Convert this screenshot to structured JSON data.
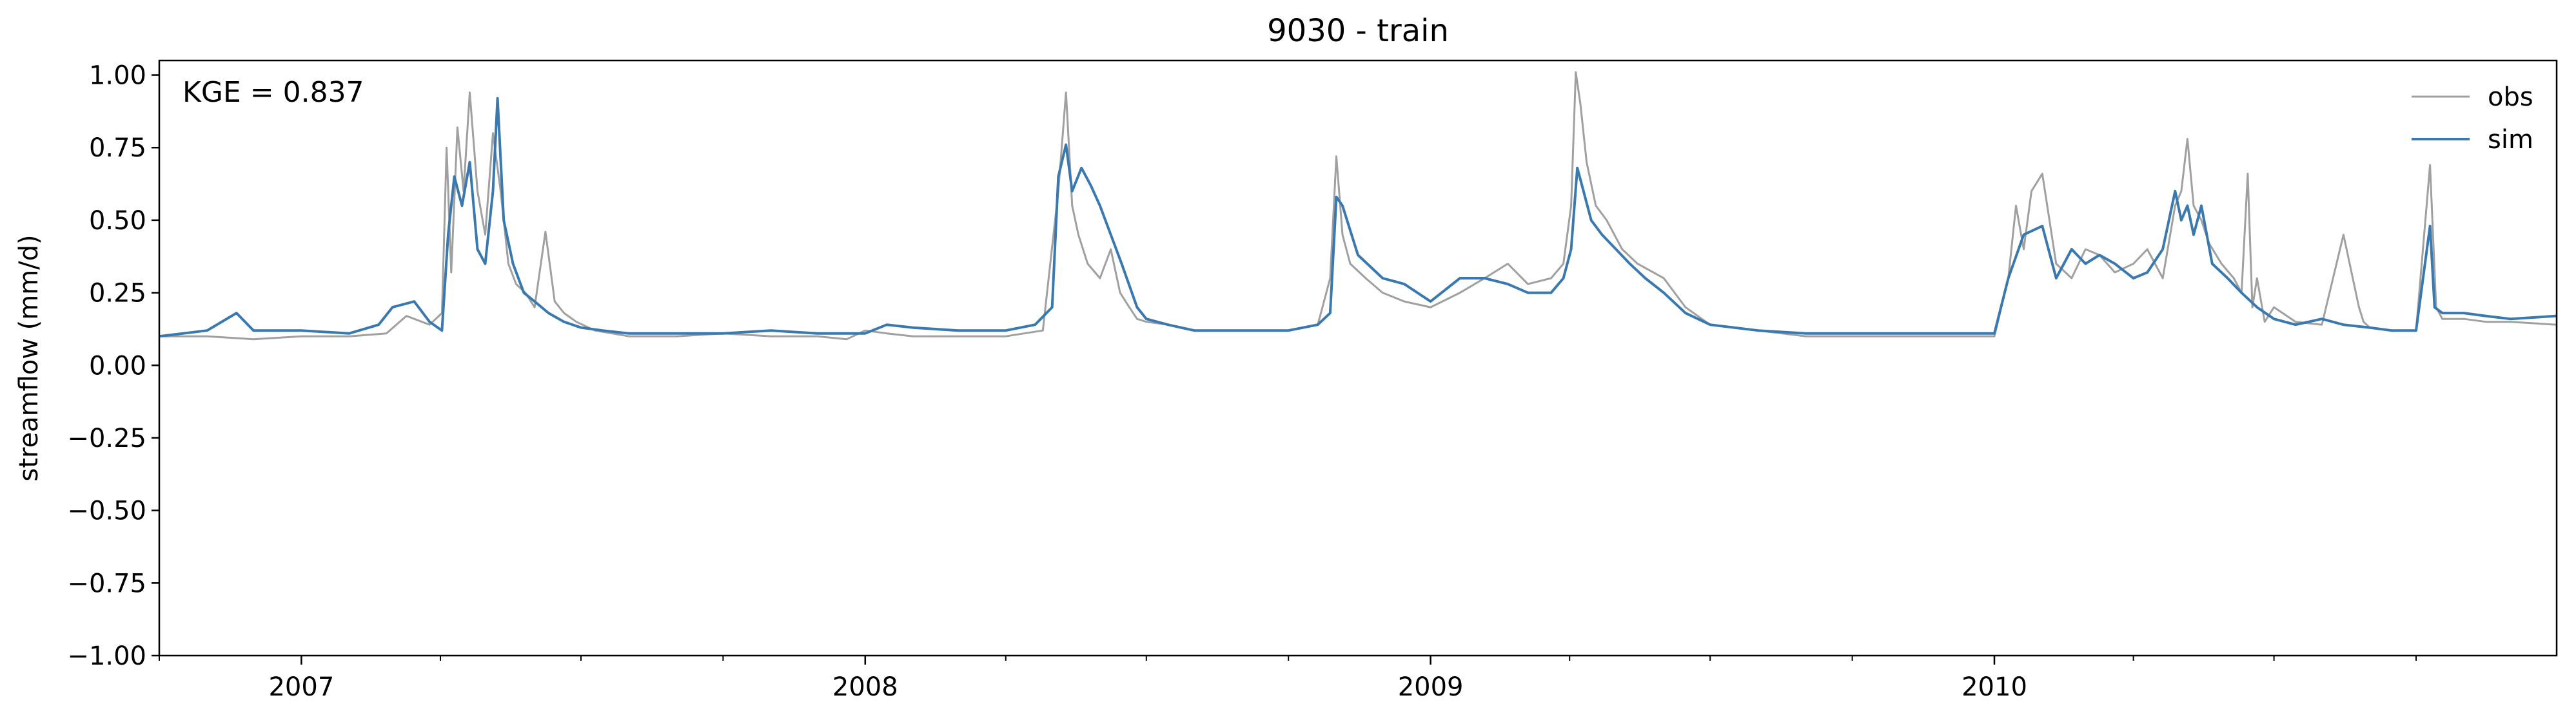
{
  "chart_data": {
    "type": "line",
    "title": "9030 - train",
    "xlabel": "",
    "ylabel": "streamflow (mm/d)",
    "annotation": "KGE = 0.837",
    "xlim": [
      "2006-10-01",
      "2010-12-31"
    ],
    "ylim": [
      -1.0,
      1.05
    ],
    "y_ticks": [
      -1.0,
      -0.75,
      -0.5,
      -0.25,
      0.0,
      0.25,
      0.5,
      0.75,
      1.0
    ],
    "y_tick_labels": [
      "−1.00",
      "−0.75",
      "−0.50",
      "−0.25",
      "0.00",
      "0.25",
      "0.50",
      "0.75",
      "1.00"
    ],
    "x_ticks": [
      "2007-01-01",
      "2008-01-01",
      "2009-01-01",
      "2010-01-01"
    ],
    "x_tick_labels": [
      "2007",
      "2008",
      "2009",
      "2010"
    ],
    "x_minor_ticks": [
      "2006-10-01",
      "2007-04-01",
      "2007-07-01",
      "2007-10-01",
      "2008-04-01",
      "2008-07-01",
      "2008-10-01",
      "2009-04-01",
      "2009-07-01",
      "2009-10-01",
      "2010-04-01",
      "2010-07-01",
      "2010-10-01"
    ],
    "grid": false,
    "legend_position": "top-right",
    "series": [
      {
        "name": "obs",
        "color": "#a0a0a0",
        "x": [
          "2006-10-01",
          "2006-11-01",
          "2006-12-01",
          "2007-01-01",
          "2007-02-01",
          "2007-02-25",
          "2007-03-10",
          "2007-03-25",
          "2007-04-02",
          "2007-04-05",
          "2007-04-08",
          "2007-04-12",
          "2007-04-16",
          "2007-04-20",
          "2007-04-25",
          "2007-04-30",
          "2007-05-05",
          "2007-05-10",
          "2007-05-15",
          "2007-05-20",
          "2007-05-26",
          "2007-06-01",
          "2007-06-08",
          "2007-06-14",
          "2007-06-20",
          "2007-06-28",
          "2007-07-10",
          "2007-08-01",
          "2007-09-01",
          "2007-10-01",
          "2007-11-01",
          "2007-12-01",
          "2007-12-20",
          "2008-01-01",
          "2008-01-15",
          "2008-02-01",
          "2008-03-01",
          "2008-04-01",
          "2008-04-25",
          "2008-05-05",
          "2008-05-10",
          "2008-05-14",
          "2008-05-18",
          "2008-05-24",
          "2008-06-01",
          "2008-06-08",
          "2008-06-14",
          "2008-06-20",
          "2008-06-25",
          "2008-07-01",
          "2008-07-15",
          "2008-08-01",
          "2008-09-01",
          "2008-10-01",
          "2008-10-20",
          "2008-10-28",
          "2008-11-01",
          "2008-11-05",
          "2008-11-10",
          "2008-11-20",
          "2008-12-01",
          "2008-12-15",
          "2009-01-01",
          "2009-01-20",
          "2009-02-05",
          "2009-02-20",
          "2009-03-05",
          "2009-03-20",
          "2009-03-28",
          "2009-04-02",
          "2009-04-05",
          "2009-04-08",
          "2009-04-12",
          "2009-04-18",
          "2009-04-25",
          "2009-05-05",
          "2009-05-15",
          "2009-06-01",
          "2009-06-15",
          "2009-07-01",
          "2009-08-01",
          "2009-09-01",
          "2009-10-01",
          "2009-11-01",
          "2009-12-01",
          "2010-01-01",
          "2010-01-10",
          "2010-01-15",
          "2010-01-20",
          "2010-01-25",
          "2010-02-01",
          "2010-02-10",
          "2010-02-20",
          "2010-03-01",
          "2010-03-10",
          "2010-03-20",
          "2010-04-01",
          "2010-04-10",
          "2010-04-20",
          "2010-04-28",
          "2010-05-02",
          "2010-05-06",
          "2010-05-10",
          "2010-05-15",
          "2010-05-20",
          "2010-05-28",
          "2010-06-05",
          "2010-06-10",
          "2010-06-14",
          "2010-06-17",
          "2010-06-20",
          "2010-06-25",
          "2010-07-01",
          "2010-07-15",
          "2010-08-01",
          "2010-08-15",
          "2010-08-25",
          "2010-08-28",
          "2010-09-01",
          "2010-09-15",
          "2010-10-01",
          "2010-10-10",
          "2010-10-14",
          "2010-10-18",
          "2010-11-01",
          "2010-11-15",
          "2010-12-01",
          "2010-12-31"
        ],
        "y": [
          0.1,
          0.1,
          0.09,
          0.1,
          0.1,
          0.11,
          0.17,
          0.14,
          0.18,
          0.75,
          0.32,
          0.82,
          0.6,
          0.94,
          0.6,
          0.45,
          0.8,
          0.6,
          0.35,
          0.28,
          0.25,
          0.2,
          0.46,
          0.22,
          0.18,
          0.15,
          0.12,
          0.1,
          0.1,
          0.11,
          0.1,
          0.1,
          0.09,
          0.12,
          0.11,
          0.1,
          0.1,
          0.1,
          0.12,
          0.6,
          0.94,
          0.55,
          0.45,
          0.35,
          0.3,
          0.4,
          0.25,
          0.2,
          0.16,
          0.15,
          0.14,
          0.12,
          0.12,
          0.12,
          0.14,
          0.3,
          0.72,
          0.45,
          0.35,
          0.3,
          0.25,
          0.22,
          0.2,
          0.25,
          0.3,
          0.35,
          0.28,
          0.3,
          0.35,
          0.55,
          1.01,
          0.9,
          0.7,
          0.55,
          0.5,
          0.4,
          0.35,
          0.3,
          0.2,
          0.14,
          0.12,
          0.1,
          0.1,
          0.1,
          0.1,
          0.1,
          0.3,
          0.55,
          0.4,
          0.6,
          0.66,
          0.35,
          0.3,
          0.4,
          0.38,
          0.32,
          0.35,
          0.4,
          0.3,
          0.55,
          0.6,
          0.78,
          0.55,
          0.5,
          0.42,
          0.35,
          0.3,
          0.25,
          0.66,
          0.2,
          0.3,
          0.15,
          0.2,
          0.15,
          0.14,
          0.45,
          0.2,
          0.15,
          0.13,
          0.12,
          0.12,
          0.69,
          0.2,
          0.16,
          0.16,
          0.15,
          0.15,
          0.14
        ]
      },
      {
        "name": "sim",
        "color": "#3a78b0",
        "x": [
          "2006-10-01",
          "2006-11-01",
          "2006-11-20",
          "2006-12-01",
          "2007-01-01",
          "2007-02-01",
          "2007-02-20",
          "2007-03-01",
          "2007-03-15",
          "2007-03-25",
          "2007-04-02",
          "2007-04-06",
          "2007-04-10",
          "2007-04-15",
          "2007-04-20",
          "2007-04-25",
          "2007-04-30",
          "2007-05-05",
          "2007-05-08",
          "2007-05-12",
          "2007-05-18",
          "2007-05-25",
          "2007-06-01",
          "2007-06-10",
          "2007-06-20",
          "2007-07-01",
          "2007-07-15",
          "2007-08-01",
          "2007-09-01",
          "2007-10-01",
          "2007-11-01",
          "2007-12-01",
          "2008-01-01",
          "2008-01-15",
          "2008-02-01",
          "2008-03-01",
          "2008-04-01",
          "2008-04-20",
          "2008-05-01",
          "2008-05-05",
          "2008-05-10",
          "2008-05-14",
          "2008-05-20",
          "2008-05-26",
          "2008-06-01",
          "2008-06-08",
          "2008-06-15",
          "2008-06-25",
          "2008-07-01",
          "2008-07-15",
          "2008-08-01",
          "2008-09-01",
          "2008-10-01",
          "2008-10-20",
          "2008-10-28",
          "2008-11-01",
          "2008-11-05",
          "2008-11-15",
          "2008-12-01",
          "2008-12-15",
          "2009-01-01",
          "2009-01-20",
          "2009-02-05",
          "2009-02-20",
          "2009-03-05",
          "2009-03-20",
          "2009-03-28",
          "2009-04-02",
          "2009-04-06",
          "2009-04-10",
          "2009-04-15",
          "2009-04-22",
          "2009-05-01",
          "2009-05-10",
          "2009-05-20",
          "2009-06-01",
          "2009-06-15",
          "2009-07-01",
          "2009-08-01",
          "2009-09-01",
          "2009-10-01",
          "2009-11-01",
          "2009-12-01",
          "2010-01-01",
          "2010-01-10",
          "2010-01-20",
          "2010-02-01",
          "2010-02-10",
          "2010-02-20",
          "2010-03-01",
          "2010-03-10",
          "2010-03-20",
          "2010-04-01",
          "2010-04-10",
          "2010-04-20",
          "2010-04-28",
          "2010-05-02",
          "2010-05-06",
          "2010-05-10",
          "2010-05-15",
          "2010-05-22",
          "2010-06-01",
          "2010-06-10",
          "2010-06-20",
          "2010-07-01",
          "2010-07-15",
          "2010-08-01",
          "2010-08-15",
          "2010-09-01",
          "2010-09-15",
          "2010-10-01",
          "2010-10-10",
          "2010-10-13",
          "2010-10-18",
          "2010-11-01",
          "2010-11-15",
          "2010-12-01",
          "2010-12-31"
        ],
        "y": [
          0.1,
          0.12,
          0.18,
          0.12,
          0.12,
          0.11,
          0.14,
          0.2,
          0.22,
          0.15,
          0.12,
          0.45,
          0.65,
          0.55,
          0.7,
          0.4,
          0.35,
          0.6,
          0.92,
          0.5,
          0.35,
          0.25,
          0.22,
          0.18,
          0.15,
          0.13,
          0.12,
          0.11,
          0.11,
          0.11,
          0.12,
          0.11,
          0.11,
          0.14,
          0.13,
          0.12,
          0.12,
          0.14,
          0.2,
          0.65,
          0.76,
          0.6,
          0.68,
          0.62,
          0.55,
          0.45,
          0.35,
          0.2,
          0.16,
          0.14,
          0.12,
          0.12,
          0.12,
          0.14,
          0.18,
          0.58,
          0.55,
          0.38,
          0.3,
          0.28,
          0.22,
          0.3,
          0.3,
          0.28,
          0.25,
          0.25,
          0.3,
          0.4,
          0.68,
          0.6,
          0.5,
          0.45,
          0.4,
          0.35,
          0.3,
          0.25,
          0.18,
          0.14,
          0.12,
          0.11,
          0.11,
          0.11,
          0.11,
          0.11,
          0.3,
          0.45,
          0.48,
          0.3,
          0.4,
          0.35,
          0.38,
          0.35,
          0.3,
          0.32,
          0.4,
          0.6,
          0.5,
          0.55,
          0.45,
          0.55,
          0.35,
          0.3,
          0.25,
          0.2,
          0.16,
          0.14,
          0.16,
          0.14,
          0.13,
          0.12,
          0.12,
          0.48,
          0.2,
          0.18,
          0.18,
          0.17,
          0.16,
          0.17
        ]
      }
    ]
  }
}
